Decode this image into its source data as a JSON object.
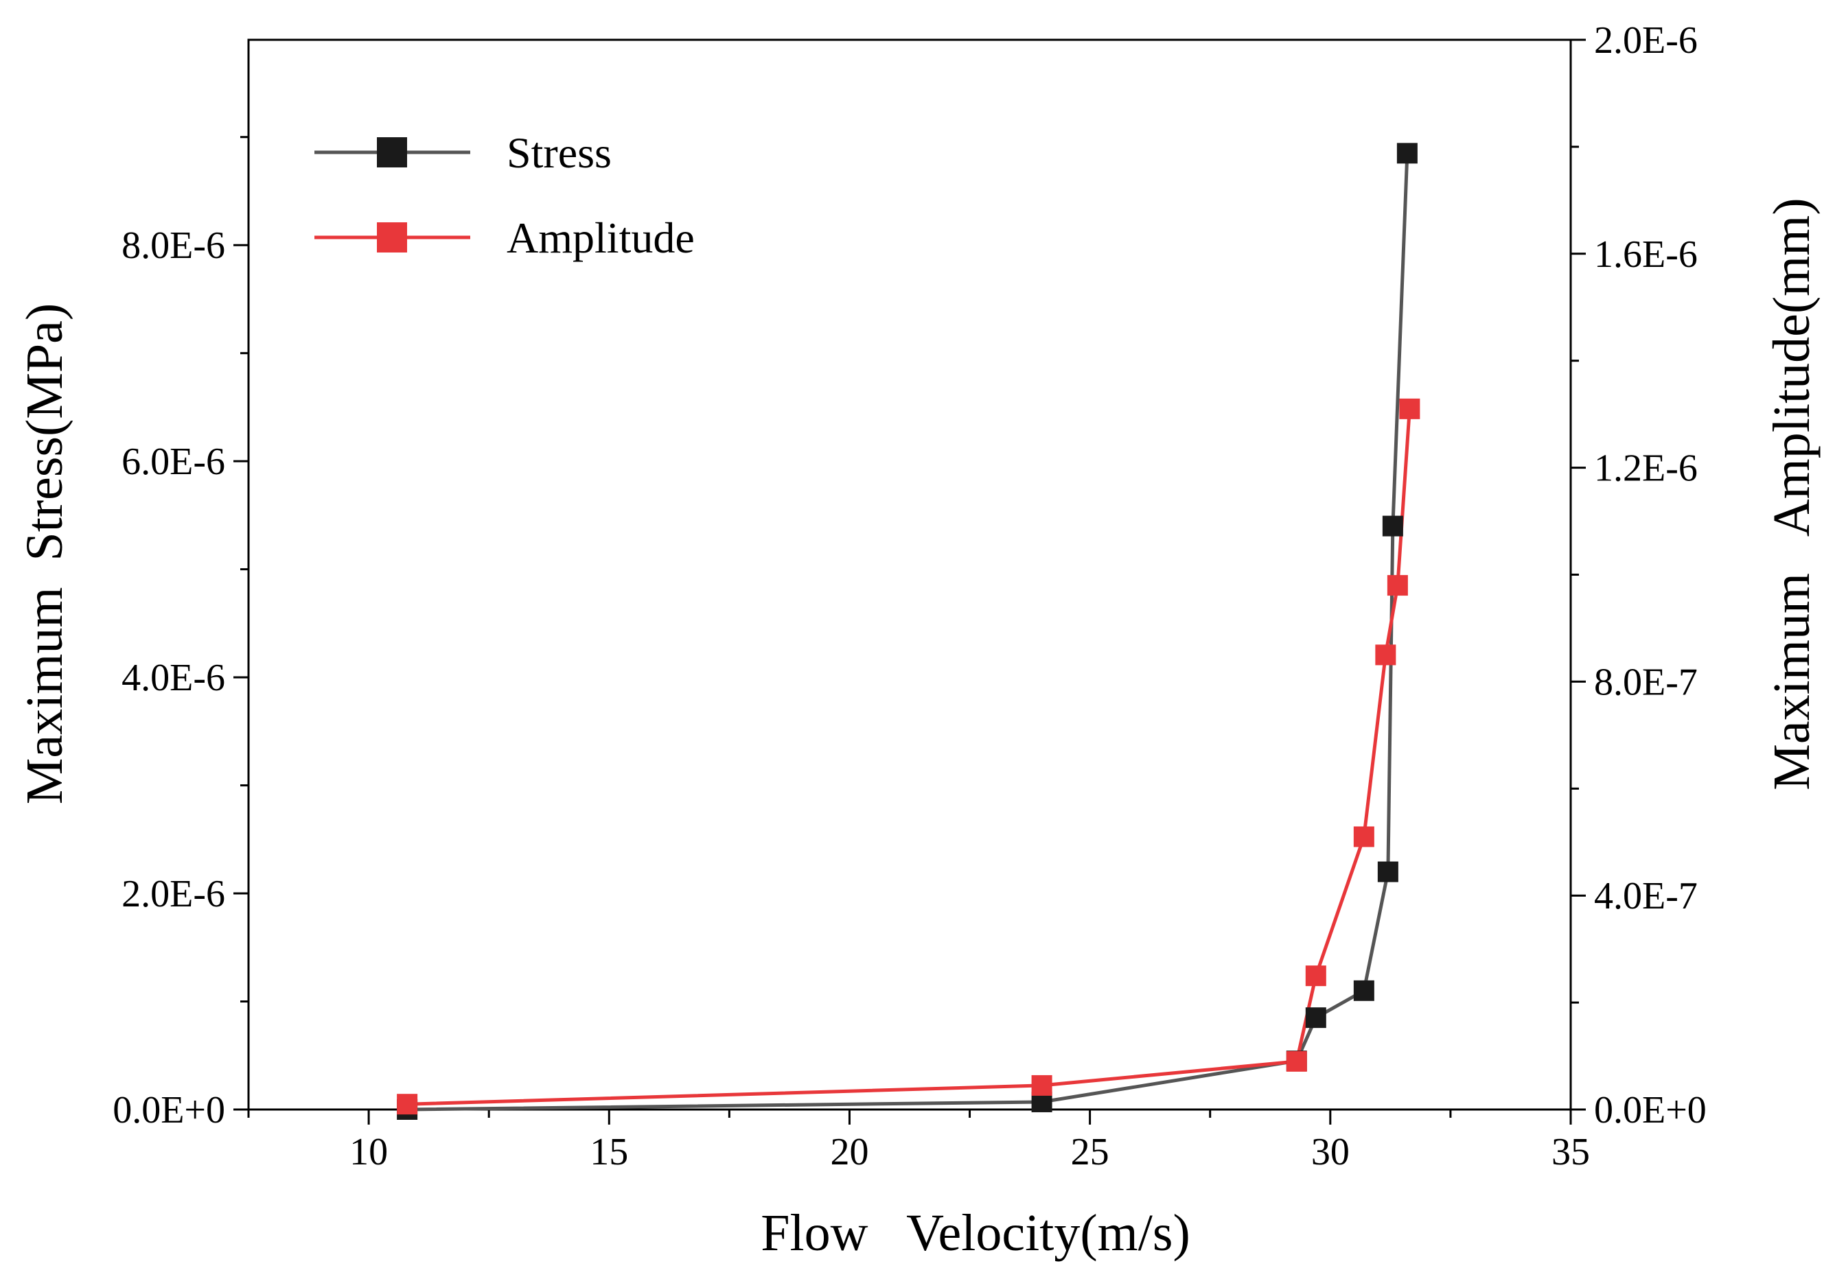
{
  "chart_data": {
    "type": "line",
    "title": "",
    "xlabel": "Flow   Velocity(m/s)",
    "ylabel_left": "Maximum  Stress(MPa)",
    "ylabel_right": "Maximum   Amplitude(mm)",
    "xlim": [
      7.5,
      35
    ],
    "ylim_left": [
      0,
      9.9e-06
    ],
    "ylim_right": [
      0,
      2e-06
    ],
    "x_ticks": [
      10,
      15,
      20,
      25,
      30,
      35
    ],
    "x_tick_labels": [
      "10",
      "15",
      "20",
      "25",
      "30",
      "35"
    ],
    "y_left_ticks": [
      0,
      2e-06,
      4e-06,
      6e-06,
      8e-06
    ],
    "y_left_tick_labels": [
      "0.0E+0",
      "2.0E-6",
      "4.0E-6",
      "6.0E-6",
      "8.0E-6"
    ],
    "y_right_ticks": [
      0,
      4e-07,
      8e-07,
      1.2e-06,
      1.6e-06,
      2e-06
    ],
    "y_right_tick_labels": [
      "0.0E+0",
      "4.0E-7",
      "8.0E-7",
      "1.2E-6",
      "1.6E-6",
      "2.0E-6"
    ],
    "grid": false,
    "legend_position": "top-left",
    "series": [
      {
        "name": "Stress",
        "axis": "left",
        "color": "#1a1a1a",
        "line_color": "#555555",
        "marker": "square",
        "x": [
          10.8,
          24.0,
          29.3,
          29.7,
          30.7,
          31.2,
          31.3,
          31.6
        ],
        "y": [
          0.0,
          7e-08,
          4.5e-07,
          8.5e-07,
          1.1e-06,
          2.2e-06,
          5.4e-06,
          8.85e-06
        ]
      },
      {
        "name": "Amplitude",
        "axis": "right",
        "color": "#e8373a",
        "line_color": "#e8373a",
        "marker": "square",
        "x": [
          10.8,
          24.0,
          29.3,
          29.7,
          30.7,
          31.15,
          31.4,
          31.65
        ],
        "y": [
          1e-08,
          4.5e-08,
          9e-08,
          2.5e-07,
          5.1e-07,
          8.5e-07,
          9.8e-07,
          1.31e-06
        ]
      }
    ]
  }
}
